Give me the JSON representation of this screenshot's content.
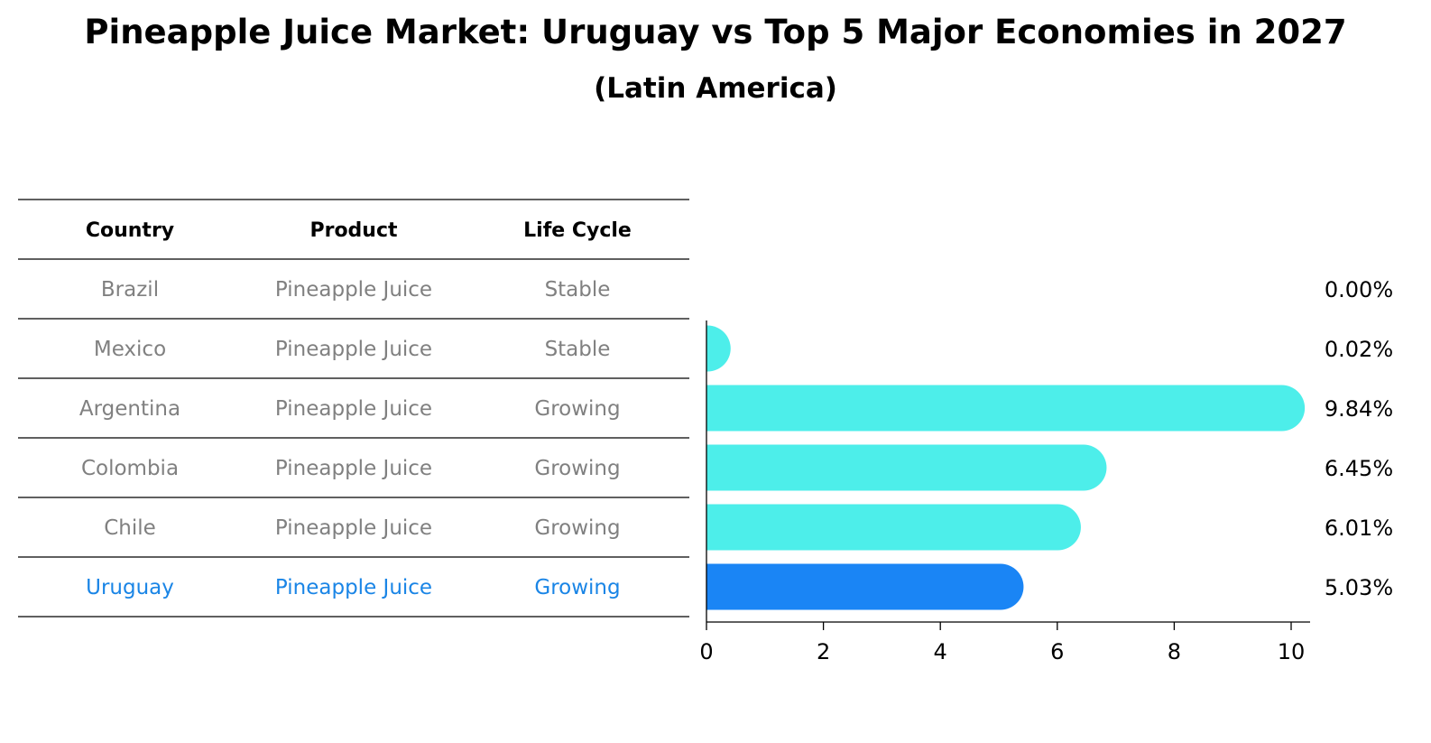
{
  "title": "Pineapple Juice Market: Uruguay vs Top 5 Major Economies in 2027",
  "subtitle": "(Latin America)",
  "table": {
    "headers": [
      "Country",
      "Product",
      "Life Cycle"
    ],
    "rows": [
      [
        "Brazil",
        "Pineapple Juice",
        "Stable"
      ],
      [
        "Mexico",
        "Pineapple Juice",
        "Stable"
      ],
      [
        "Argentina",
        "Pineapple Juice",
        "Growing"
      ],
      [
        "Colombia",
        "Pineapple Juice",
        "Growing"
      ],
      [
        "Chile",
        "Pineapple Juice",
        "Growing"
      ],
      [
        "Uruguay",
        "Pineapple Juice",
        "Growing"
      ]
    ],
    "highlight_row": 5
  },
  "chart_data": {
    "type": "bar",
    "orientation": "horizontal",
    "categories": [
      "Brazil",
      "Mexico",
      "Argentina",
      "Colombia",
      "Chile",
      "Uruguay"
    ],
    "values": [
      0.0,
      0.02,
      9.84,
      6.45,
      6.01,
      5.03
    ],
    "value_labels": [
      "0.00%",
      "0.02%",
      "9.84%",
      "6.45%",
      "6.01%",
      "5.03%"
    ],
    "xlim": [
      0,
      10.3
    ],
    "xticks": [
      0,
      2,
      4,
      6,
      8,
      10
    ],
    "xlabel": "",
    "ylabel": "",
    "highlight": "Uruguay"
  },
  "colors": {
    "bar": "#4deeea",
    "highlight": "#1a85f5",
    "muted_text": "#808080",
    "highlight_text": "#1a85e6"
  }
}
